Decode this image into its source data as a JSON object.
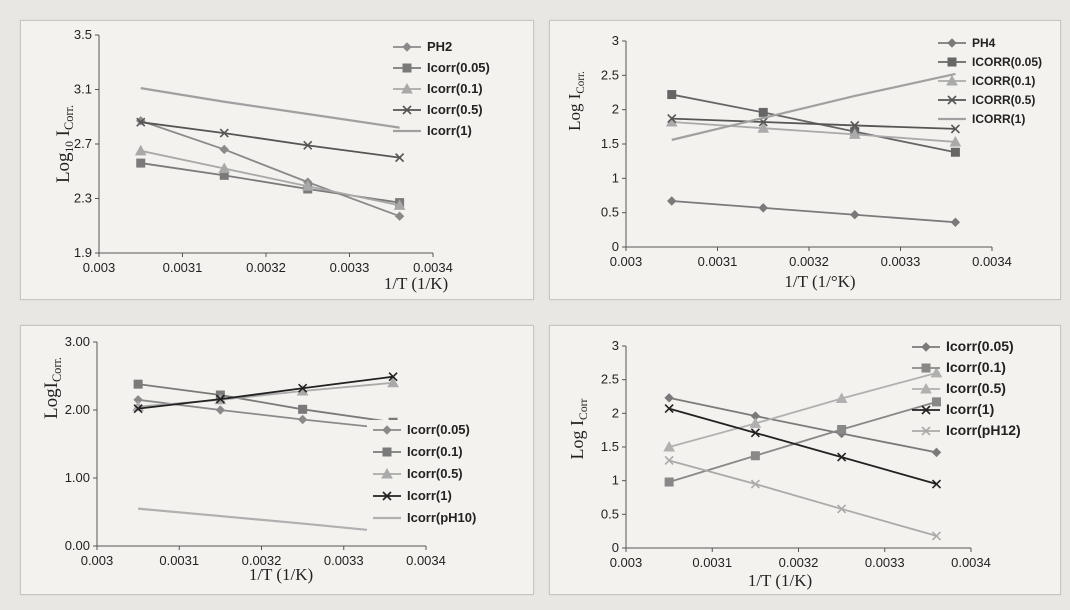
{
  "chart_data": [
    {
      "type": "line",
      "ylabel": "Log",
      "ylabel_sub": "10",
      "ylabel_main": "I",
      "ylabel_sub2": "Corr.",
      "xlabel": "1/T    (1/K)",
      "xlim": [
        0.003,
        0.0034
      ],
      "ylim": [
        1.9,
        3.5
      ],
      "xticks": [
        "0.003",
        "0.0031",
        "0.0032",
        "0.0033",
        "0.0034"
      ],
      "yticks": [
        "1.9",
        "2.3",
        "2.7",
        "3.1",
        "3.5"
      ],
      "x": [
        0.00305,
        0.00315,
        0.00325,
        0.00336
      ],
      "legend_position": "top-right",
      "series": [
        {
          "name": "PH2",
          "values": [
            2.87,
            2.66,
            2.42,
            2.17
          ],
          "color": "#8a8a8a",
          "marker": "diamond"
        },
        {
          "name": "Icorr(0.05)",
          "values": [
            2.56,
            2.47,
            2.37,
            2.27
          ],
          "color": "#7a7a7a",
          "marker": "square"
        },
        {
          "name": "Icorr(0.1)",
          "values": [
            2.65,
            2.52,
            2.39,
            2.25
          ],
          "color": "#a8a8a8",
          "marker": "triangle"
        },
        {
          "name": "Icorr(0.5)",
          "values": [
            2.86,
            2.78,
            2.69,
            2.6
          ],
          "color": "#555555",
          "marker": "x"
        },
        {
          "name": "Icorr(1)",
          "values": [
            3.11,
            3.01,
            2.92,
            2.82
          ],
          "color": "#a0a0a0",
          "marker": "none"
        }
      ]
    },
    {
      "type": "line",
      "ylabel": "Log  I",
      "ylabel_sub": "Corr.",
      "xlabel": "1/T    (1/°K)",
      "xlim": [
        0.003,
        0.0034
      ],
      "ylim": [
        0,
        3
      ],
      "xticks": [
        "0.003",
        "0.0031",
        "0.0032",
        "0.0033",
        "0.0034"
      ],
      "yticks": [
        "0",
        "0.5",
        "1",
        "1.5",
        "2",
        "2.5",
        "3"
      ],
      "x": [
        0.00305,
        0.00315,
        0.00325,
        0.00336
      ],
      "legend_position": "top-right",
      "series": [
        {
          "name": "PH4",
          "values": [
            0.67,
            0.57,
            0.47,
            0.36
          ],
          "color": "#7a7a7a",
          "marker": "diamond"
        },
        {
          "name": "ICORR(0.05)",
          "values": [
            2.22,
            1.96,
            1.68,
            1.38
          ],
          "color": "#666666",
          "marker": "square"
        },
        {
          "name": "ICORR(0.1)",
          "values": [
            1.82,
            1.73,
            1.64,
            1.53
          ],
          "color": "#aaaaaa",
          "marker": "triangle"
        },
        {
          "name": "ICORR(0.5)",
          "values": [
            1.87,
            1.82,
            1.77,
            1.72
          ],
          "color": "#555555",
          "marker": "x"
        },
        {
          "name": "ICORR(1)",
          "values": [
            1.56,
            1.88,
            2.2,
            2.52
          ],
          "color": "#a0a0a0",
          "marker": "none"
        }
      ]
    },
    {
      "type": "line",
      "ylabel": "LogI",
      "ylabel_sub": "Corr.",
      "xlabel": "1/T (1/K)",
      "xlim": [
        0.003,
        0.0034
      ],
      "ylim": [
        0,
        3
      ],
      "xticks": [
        "0.003",
        "0.0031",
        "0.0032",
        "0.0033",
        "0.0034"
      ],
      "yticks": [
        "0.00",
        "1.00",
        "2.00",
        "3.00"
      ],
      "x": [
        0.00305,
        0.00315,
        0.00325,
        0.00336
      ],
      "legend_position": "right",
      "series": [
        {
          "name": "Icorr(0.05)",
          "values": [
            2.15,
            2.0,
            1.86,
            1.72
          ],
          "color": "#8a8a8a",
          "marker": "diamond"
        },
        {
          "name": "Icorr(0.1)",
          "values": [
            2.38,
            2.22,
            2.01,
            1.82
          ],
          "color": "#7a7a7a",
          "marker": "square"
        },
        {
          "name": "Icorr(0.5)",
          "values": [
            2.05,
            2.15,
            2.28,
            2.4
          ],
          "color": "#aaaaaa",
          "marker": "triangle"
        },
        {
          "name": "Icorr(1)",
          "values": [
            2.02,
            2.16,
            2.32,
            2.49
          ],
          "color": "#222222",
          "marker": "x"
        },
        {
          "name": "Icorr(pH10)",
          "values": [
            0.55,
            0.44,
            0.33,
            0.2
          ],
          "color": "#b0b0b0",
          "marker": "none"
        }
      ]
    },
    {
      "type": "line",
      "ylabel": "Log  I",
      "ylabel_sub": "Corr",
      "xlabel": "1/T (1/K)",
      "xlim": [
        0.003,
        0.0034
      ],
      "ylim": [
        0,
        3
      ],
      "xticks": [
        "0.003",
        "0.0031",
        "0.0032",
        "0.0033",
        "0.0034"
      ],
      "yticks": [
        "0",
        "0.5",
        "1",
        "1.5",
        "2",
        "2.5",
        "3"
      ],
      "x": [
        0.00305,
        0.00315,
        0.00325,
        0.00336
      ],
      "legend_position": "top-right",
      "series": [
        {
          "name": "Icorr(0.05)",
          "values": [
            2.23,
            1.96,
            1.7,
            1.42
          ],
          "color": "#7a7a7a",
          "marker": "diamond"
        },
        {
          "name": "Icorr(0.1)",
          "values": [
            0.98,
            1.37,
            1.76,
            2.17
          ],
          "color": "#888888",
          "marker": "square"
        },
        {
          "name": "Icorr(0.5)",
          "values": [
            1.5,
            1.85,
            2.22,
            2.6
          ],
          "color": "#b0b0b0",
          "marker": "triangle"
        },
        {
          "name": "Icorr(1)",
          "values": [
            2.07,
            1.71,
            1.35,
            0.95
          ],
          "color": "#222222",
          "marker": "x"
        },
        {
          "name": "Icorr(pH12)",
          "values": [
            1.3,
            0.95,
            0.58,
            0.18
          ],
          "color": "#aaaaaa",
          "marker": "x"
        }
      ]
    }
  ]
}
